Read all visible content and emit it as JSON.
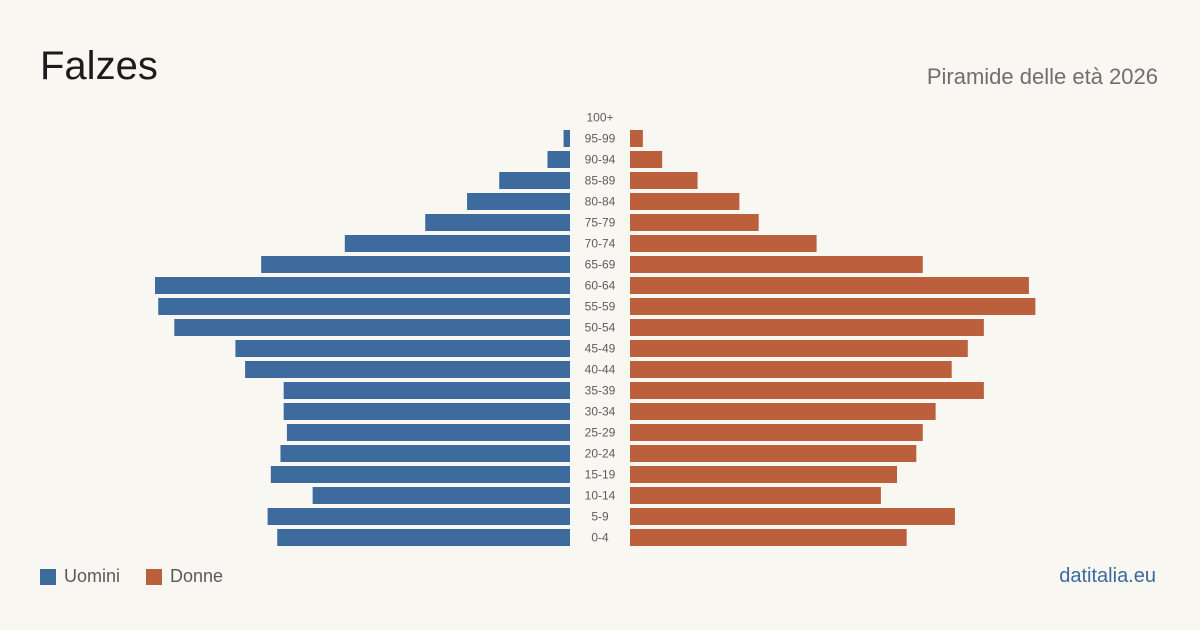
{
  "header": {
    "title": "Falzes",
    "subtitle": "Piramide delle età 2026"
  },
  "legend": {
    "men_label": "Uomini",
    "women_label": "Donne"
  },
  "footer": {
    "source": "datitalia.eu"
  },
  "colors": {
    "men": "#3d6b9e",
    "women": "#bb5f3d",
    "background": "#f9f7f2"
  },
  "chart_data": {
    "type": "bar",
    "orientation": "horizontal-pyramid",
    "categories": [
      "100+",
      "95-99",
      "90-94",
      "85-89",
      "80-84",
      "75-79",
      "70-74",
      "65-69",
      "60-64",
      "55-59",
      "50-54",
      "45-49",
      "40-44",
      "35-39",
      "30-34",
      "25-29",
      "20-24",
      "15-19",
      "10-14",
      "5-9",
      "0-4"
    ],
    "series": [
      {
        "name": "Uomini",
        "values": [
          0,
          2,
          7,
          22,
          32,
          45,
          70,
          96,
          129,
          128,
          123,
          104,
          101,
          89,
          89,
          88,
          90,
          93,
          80,
          94,
          91
        ]
      },
      {
        "name": "Donne",
        "values": [
          0,
          4,
          10,
          21,
          34,
          40,
          58,
          91,
          124,
          126,
          110,
          105,
          100,
          110,
          95,
          91,
          89,
          83,
          78,
          101,
          86
        ]
      }
    ],
    "legend_position": "bottom-left",
    "grid": false
  }
}
